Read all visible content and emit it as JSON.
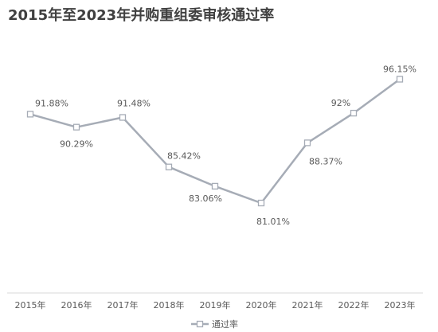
{
  "chart_data": {
    "type": "line",
    "title": "2015年至2023年并购重组委审核通过率",
    "xlabel": "",
    "ylabel": "",
    "categories": [
      "2015年",
      "2016年",
      "2017年",
      "2018年",
      "2019年",
      "2020年",
      "2021年",
      "2022年",
      "2023年"
    ],
    "series": [
      {
        "name": "通过率",
        "values": [
          91.88,
          90.29,
          91.48,
          85.42,
          83.06,
          81.01,
          88.37,
          92,
          96.15
        ],
        "labels": [
          "91.88%",
          "90.29%",
          "91.48%",
          "85.42%",
          "83.06%",
          "81.01%",
          "88.37%",
          "92%",
          "96.15%"
        ]
      }
    ],
    "ylim": [
      70,
      100
    ],
    "grid": false,
    "legend": "bottom-center"
  },
  "colors": {
    "line": "#a6acb6",
    "marker_fill": "#ffffff",
    "axis": "#d9d9d9",
    "title": "#404040",
    "text": "#595959"
  }
}
